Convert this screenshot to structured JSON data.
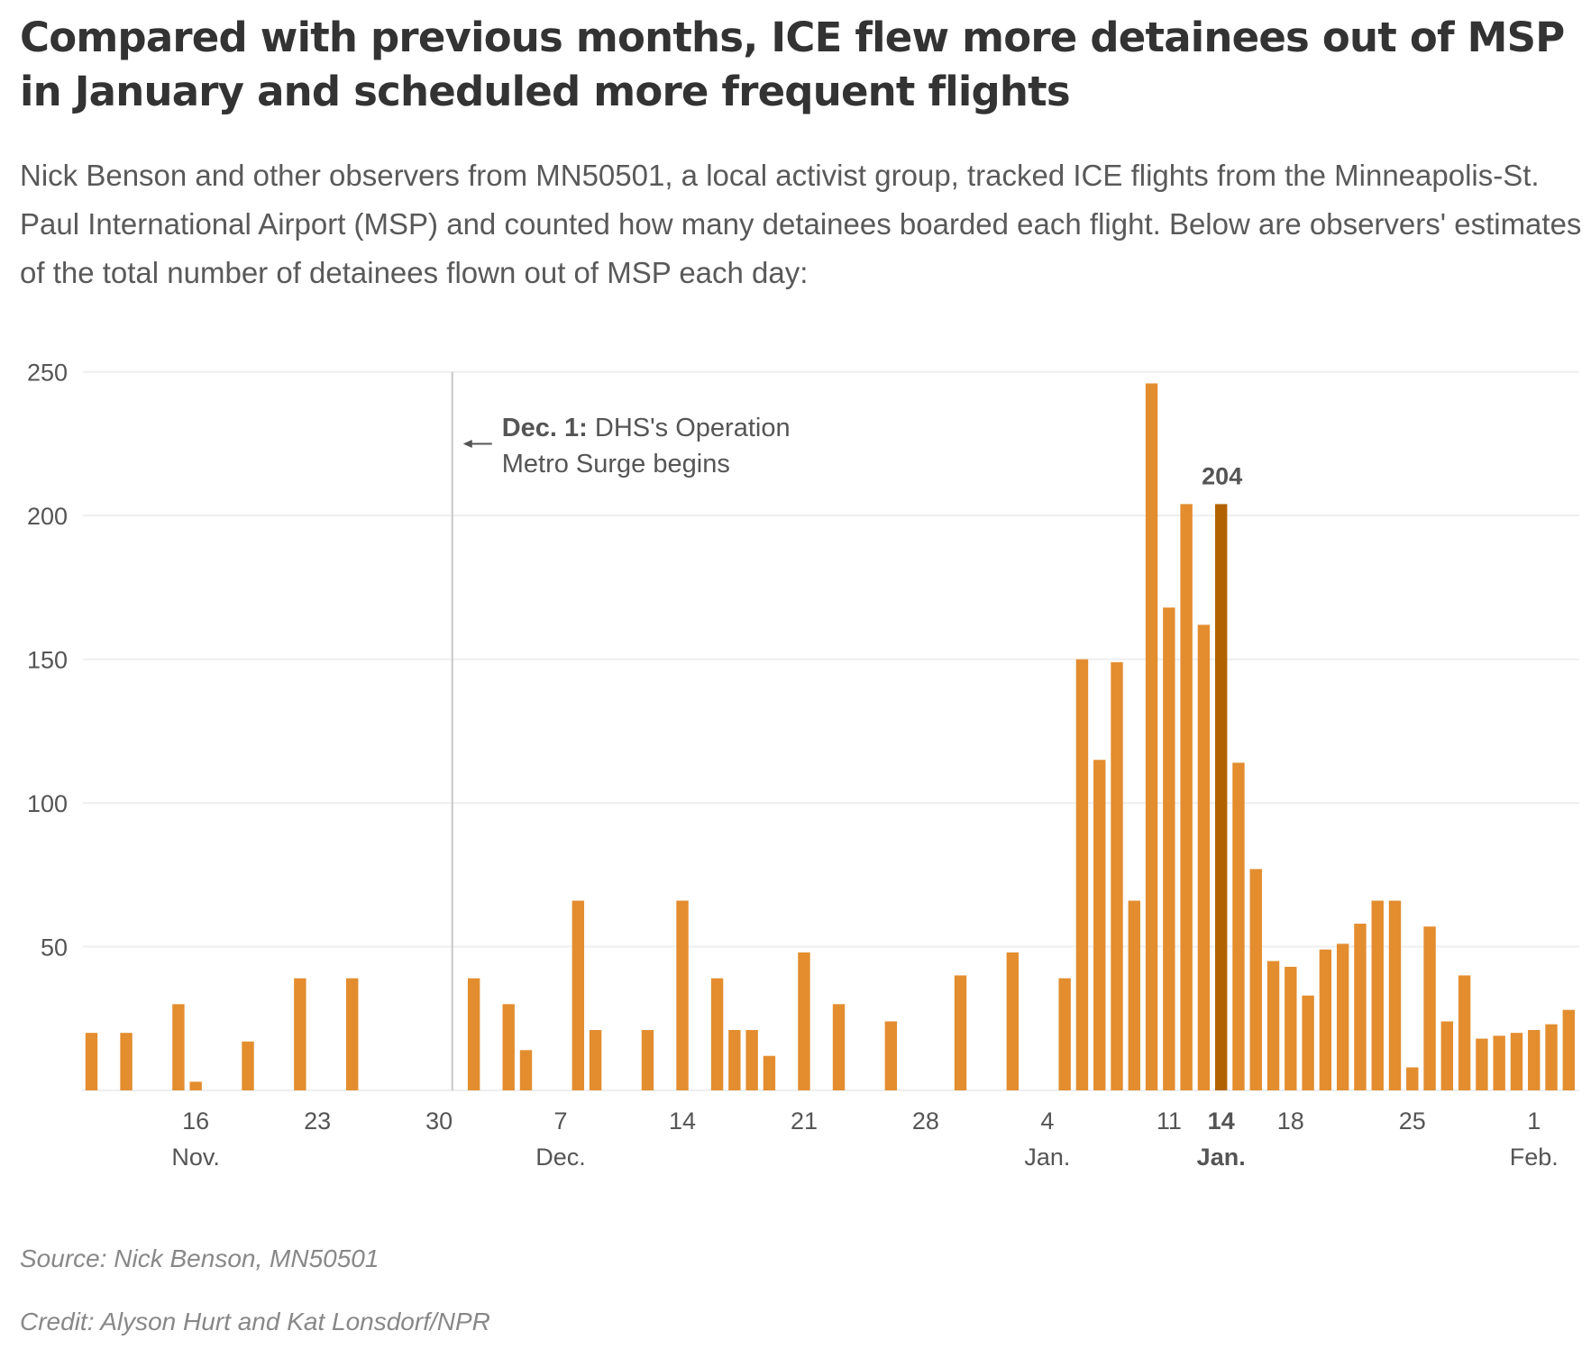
{
  "header": {
    "title": "Compared with previous months, ICE flew more detainees out of MSP in January and scheduled more frequent flights",
    "subtitle": "Nick Benson and other observers from MN50501, a local activist group, tracked ICE flights from the Minneapolis-St. Paul International Airport (MSP) and counted how many detainees boarded each flight. Below are observers' estimates of the total number of detainees flown out of MSP each day:"
  },
  "footer": {
    "source": "Source: Nick Benson, MN50501",
    "credit": "Credit: Alyson Hurt and Kat Lonsdorf/NPR"
  },
  "colors": {
    "bar": "#e38d2f",
    "highlight_bar": "#b36200",
    "text": "#555555",
    "gridline": "#eeeeee",
    "annotation_line": "#c8c8c8"
  },
  "chart_data": {
    "type": "bar",
    "title": "Compared with previous months, ICE flew more detainees out of MSP in January and scheduled more frequent flights",
    "xlabel": "",
    "ylabel": "",
    "ylim": [
      0,
      250
    ],
    "yticks": [
      50,
      100,
      150,
      200,
      250
    ],
    "grid": true,
    "x_domain": [
      "2025-11-10",
      "2026-02-03"
    ],
    "xticks": [
      {
        "date": "2025-11-16",
        "label": "16",
        "sublabel": "Nov.",
        "bold": false
      },
      {
        "date": "2025-11-23",
        "label": "23",
        "sublabel": "",
        "bold": false
      },
      {
        "date": "2025-11-30",
        "label": "30",
        "sublabel": "",
        "bold": false
      },
      {
        "date": "2025-12-07",
        "label": "7",
        "sublabel": "Dec.",
        "bold": false
      },
      {
        "date": "2025-12-14",
        "label": "14",
        "sublabel": "",
        "bold": false
      },
      {
        "date": "2025-12-21",
        "label": "21",
        "sublabel": "",
        "bold": false
      },
      {
        "date": "2025-12-28",
        "label": "28",
        "sublabel": "",
        "bold": false
      },
      {
        "date": "2026-01-04",
        "label": "4",
        "sublabel": "Jan.",
        "bold": false
      },
      {
        "date": "2026-01-11",
        "label": "11",
        "sublabel": "",
        "bold": false
      },
      {
        "date": "2026-01-14",
        "label": "14",
        "sublabel": "Jan.",
        "bold": true
      },
      {
        "date": "2026-01-18",
        "label": "18",
        "sublabel": "",
        "bold": false
      },
      {
        "date": "2026-01-25",
        "label": "25",
        "sublabel": "",
        "bold": false
      },
      {
        "date": "2026-02-01",
        "label": "1",
        "sublabel": "Feb.",
        "bold": false
      }
    ],
    "series": [
      {
        "name": "Detainees flown out of MSP per day",
        "points": [
          {
            "date": "2025-11-10",
            "value": 20
          },
          {
            "date": "2025-11-12",
            "value": 20
          },
          {
            "date": "2025-11-15",
            "value": 30
          },
          {
            "date": "2025-11-16",
            "value": 3
          },
          {
            "date": "2025-11-19",
            "value": 17
          },
          {
            "date": "2025-11-22",
            "value": 39
          },
          {
            "date": "2025-11-25",
            "value": 39
          },
          {
            "date": "2025-12-02",
            "value": 39
          },
          {
            "date": "2025-12-04",
            "value": 30
          },
          {
            "date": "2025-12-05",
            "value": 14
          },
          {
            "date": "2025-12-08",
            "value": 66
          },
          {
            "date": "2025-12-09",
            "value": 21
          },
          {
            "date": "2025-12-12",
            "value": 21
          },
          {
            "date": "2025-12-14",
            "value": 66
          },
          {
            "date": "2025-12-16",
            "value": 39
          },
          {
            "date": "2025-12-17",
            "value": 21
          },
          {
            "date": "2025-12-18",
            "value": 21
          },
          {
            "date": "2025-12-19",
            "value": 12
          },
          {
            "date": "2025-12-21",
            "value": 48
          },
          {
            "date": "2025-12-23",
            "value": 30
          },
          {
            "date": "2025-12-26",
            "value": 24
          },
          {
            "date": "2025-12-30",
            "value": 40
          },
          {
            "date": "2026-01-02",
            "value": 48
          },
          {
            "date": "2026-01-05",
            "value": 39
          },
          {
            "date": "2026-01-06",
            "value": 150
          },
          {
            "date": "2026-01-07",
            "value": 115
          },
          {
            "date": "2026-01-08",
            "value": 149
          },
          {
            "date": "2026-01-09",
            "value": 66
          },
          {
            "date": "2026-01-10",
            "value": 246
          },
          {
            "date": "2026-01-11",
            "value": 168
          },
          {
            "date": "2026-01-12",
            "value": 204
          },
          {
            "date": "2026-01-13",
            "value": 162
          },
          {
            "date": "2026-01-14",
            "value": 204,
            "highlight": true,
            "label": "204"
          },
          {
            "date": "2026-01-15",
            "value": 114
          },
          {
            "date": "2026-01-16",
            "value": 77
          },
          {
            "date": "2026-01-17",
            "value": 45
          },
          {
            "date": "2026-01-18",
            "value": 43
          },
          {
            "date": "2026-01-19",
            "value": 33
          },
          {
            "date": "2026-01-20",
            "value": 49
          },
          {
            "date": "2026-01-21",
            "value": 51
          },
          {
            "date": "2026-01-22",
            "value": 58
          },
          {
            "date": "2026-01-23",
            "value": 66
          },
          {
            "date": "2026-01-24",
            "value": 66
          },
          {
            "date": "2026-01-25",
            "value": 8
          },
          {
            "date": "2026-01-26",
            "value": 57
          },
          {
            "date": "2026-01-27",
            "value": 24
          },
          {
            "date": "2026-01-28",
            "value": 40
          },
          {
            "date": "2026-01-29",
            "value": 18
          },
          {
            "date": "2026-01-30",
            "value": 19
          },
          {
            "date": "2026-01-31",
            "value": 20
          },
          {
            "date": "2026-02-01",
            "value": 21
          },
          {
            "date": "2026-02-02",
            "value": 23
          },
          {
            "date": "2026-02-03",
            "value": 28
          }
        ]
      }
    ],
    "annotations": [
      {
        "date": "2025-12-01",
        "type": "vertical-line",
        "arrow": "left",
        "bold_text": "Dec. 1:",
        "text_line1": "DHS's Operation",
        "text_line2": "Metro Surge begins"
      }
    ]
  }
}
